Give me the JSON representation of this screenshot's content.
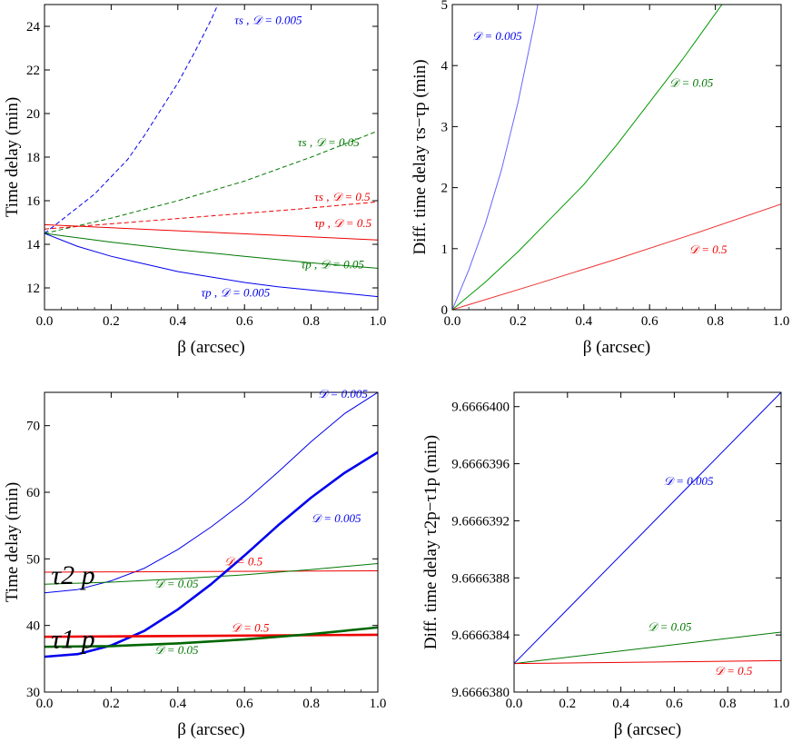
{
  "chart_data": [
    {
      "type": "line",
      "id": "top_left",
      "xlabel": "β (arcsec)",
      "ylabel": "Time delay (min)",
      "xlim": [
        0,
        1
      ],
      "ylim": [
        11,
        25
      ],
      "xticks": [
        0.0,
        0.2,
        0.4,
        0.6,
        0.8,
        1.0
      ],
      "xtick_labels": [
        "0.0",
        "0.2",
        "0.4",
        "0.6",
        "0.8",
        "1.0"
      ],
      "yticks": [
        12,
        14,
        16,
        18,
        20,
        22,
        24
      ],
      "ytick_labels": [
        "12",
        "14",
        "16",
        "18",
        "20",
        "22",
        "24"
      ],
      "series": [
        {
          "name": "τs, 𝒟 = 0.005",
          "color": "#0000ee",
          "dash": true,
          "width": 1,
          "x": [
            0,
            0.05,
            0.1,
            0.15,
            0.2,
            0.25,
            0.3,
            0.35,
            0.4,
            0.45,
            0.5,
            0.52
          ],
          "y": [
            14.5,
            15.1,
            15.7,
            16.3,
            17.1,
            17.9,
            19.0,
            20.2,
            21.4,
            22.8,
            24.3,
            25.0
          ]
        },
        {
          "name": "τs, 𝒟 = 0.05",
          "color": "#007700",
          "dash": true,
          "width": 1,
          "x": [
            0,
            0.2,
            0.4,
            0.6,
            0.8,
            1.0
          ],
          "y": [
            14.5,
            15.2,
            16.0,
            16.9,
            18.0,
            19.2
          ]
        },
        {
          "name": "τs, 𝒟 = 0.5",
          "color": "#ee0000",
          "dash": true,
          "width": 1,
          "x": [
            0,
            0.25,
            0.5,
            0.75,
            1.0
          ],
          "y": [
            14.7,
            15.0,
            15.3,
            15.6,
            15.95
          ]
        },
        {
          "name": "τp, 𝒟 = 0.5",
          "color": "#ee0000",
          "dash": false,
          "width": 1,
          "x": [
            0,
            0.5,
            1.0
          ],
          "y": [
            14.9,
            14.55,
            14.2
          ]
        },
        {
          "name": "τp, 𝒟 = 0.05",
          "color": "#007700",
          "dash": false,
          "width": 1,
          "x": [
            0,
            0.2,
            0.4,
            0.6,
            0.8,
            1.0
          ],
          "y": [
            14.5,
            14.1,
            13.75,
            13.45,
            13.15,
            12.9
          ]
        },
        {
          "name": "τp, 𝒟 = 0.005",
          "color": "#0000ee",
          "dash": false,
          "width": 1,
          "x": [
            0,
            0.1,
            0.2,
            0.3,
            0.4,
            0.5,
            0.6,
            0.7,
            0.8,
            0.9,
            1.0
          ],
          "y": [
            14.5,
            13.9,
            13.45,
            13.1,
            12.75,
            12.5,
            12.25,
            12.05,
            11.9,
            11.75,
            11.6
          ]
        }
      ],
      "annotations": [
        {
          "text": "τs ,  𝒟 = 0.005",
          "x": 0.57,
          "y": 24.1,
          "color": "#0000ee"
        },
        {
          "text": "τs ,  𝒟 = 0.05",
          "x": 0.76,
          "y": 18.5,
          "color": "#007700"
        },
        {
          "text": "τs ,  𝒟 = 0.5",
          "x": 0.81,
          "y": 16.0,
          "color": "#ee0000"
        },
        {
          "text": "τp ,  𝒟 = 0.5",
          "x": 0.81,
          "y": 14.8,
          "color": "#ee0000"
        },
        {
          "text": "τp ,  𝒟 = 0.05",
          "x": 0.77,
          "y": 12.9,
          "color": "#007700"
        },
        {
          "text": "τp ,  𝒟 = 0.005",
          "x": 0.47,
          "y": 11.6,
          "color": "#0000ee"
        }
      ]
    },
    {
      "type": "line",
      "id": "top_right",
      "xlabel": "β (arcsec)",
      "ylabel": "Diff. time delay τs−τp (min)",
      "xlim": [
        0,
        1
      ],
      "ylim": [
        0,
        5
      ],
      "xticks": [
        0.0,
        0.2,
        0.4,
        0.6,
        0.8,
        1.0
      ],
      "xtick_labels": [
        "0.0",
        "0.2",
        "0.4",
        "0.6",
        "0.8",
        "1.0"
      ],
      "yticks": [
        0,
        1,
        2,
        3,
        4,
        5
      ],
      "ytick_labels": [
        "0",
        "1",
        "2",
        "3",
        "4",
        "5"
      ],
      "series": [
        {
          "name": "𝒟 = 0.005",
          "color": "#6666ff",
          "dash": false,
          "width": 1,
          "x": [
            0,
            0.05,
            0.1,
            0.15,
            0.2,
            0.25,
            0.26
          ],
          "y": [
            0,
            0.65,
            1.4,
            2.3,
            3.4,
            4.7,
            5.0
          ]
        },
        {
          "name": "𝒟 = 0.05",
          "color": "#009900",
          "dash": false,
          "width": 1,
          "x": [
            0,
            0.1,
            0.2,
            0.3,
            0.4,
            0.5,
            0.6,
            0.7,
            0.8,
            0.82
          ],
          "y": [
            0,
            0.45,
            0.95,
            1.5,
            2.05,
            2.7,
            3.4,
            4.1,
            4.85,
            5.0
          ]
        },
        {
          "name": "𝒟 = 0.5",
          "color": "#ee3333",
          "dash": false,
          "width": 1,
          "x": [
            0,
            0.25,
            0.5,
            0.75,
            1.0
          ],
          "y": [
            0,
            0.41,
            0.83,
            1.27,
            1.73
          ]
        }
      ],
      "annotations": [
        {
          "text": "𝒟 = 0.005",
          "x": 0.06,
          "y": 4.42,
          "color": "#0000ee"
        },
        {
          "text": "𝒟 = 0.05",
          "x": 0.66,
          "y": 3.65,
          "color": "#007700"
        },
        {
          "text": "𝒟 = 0.5",
          "x": 0.72,
          "y": 0.92,
          "color": "#ee0000"
        }
      ]
    },
    {
      "type": "line",
      "id": "bottom_left",
      "xlabel": "β (arcsec)",
      "ylabel": "Time delay (min)",
      "xlim": [
        0,
        1
      ],
      "ylim": [
        30,
        75
      ],
      "xticks": [
        0.0,
        0.2,
        0.4,
        0.6,
        0.8,
        1.0
      ],
      "xtick_labels": [
        "0.0",
        "0.2",
        "0.4",
        "0.6",
        "0.8",
        "1.0"
      ],
      "yticks": [
        30,
        40,
        50,
        60,
        70
      ],
      "ytick_labels": [
        "30",
        "40",
        "50",
        "60",
        "70"
      ],
      "series": [
        {
          "name": "τ2p, 𝒟 = 0.005",
          "color": "#0000ee",
          "dash": false,
          "width": 1,
          "x": [
            0,
            0.1,
            0.2,
            0.3,
            0.4,
            0.5,
            0.6,
            0.7,
            0.8,
            0.9,
            1.0
          ],
          "y": [
            44.9,
            45.4,
            46.7,
            48.6,
            51.4,
            54.8,
            58.6,
            63.0,
            67.6,
            71.8,
            75.0
          ]
        },
        {
          "name": "τ2p, 𝒟 = 0.5",
          "color": "#ee0000",
          "dash": false,
          "width": 1,
          "x": [
            0,
            1.0
          ],
          "y": [
            48.0,
            48.2
          ]
        },
        {
          "name": "τ2p, 𝒟 = 0.05",
          "color": "#007700",
          "dash": false,
          "width": 1,
          "x": [
            0,
            0.2,
            0.4,
            0.6,
            0.8,
            1.0
          ],
          "y": [
            46.2,
            46.5,
            47.0,
            47.6,
            48.4,
            49.3
          ]
        },
        {
          "name": "τ1p, 𝒟 = 0.005",
          "color": "#0000ee",
          "dash": false,
          "width": 2.6,
          "x": [
            0,
            0.1,
            0.2,
            0.3,
            0.4,
            0.5,
            0.6,
            0.7,
            0.8,
            0.9,
            1.0
          ],
          "y": [
            35.3,
            35.7,
            37.0,
            39.2,
            42.4,
            46.2,
            50.5,
            55.0,
            59.2,
            62.9,
            66.0
          ]
        },
        {
          "name": "τ1p, 𝒟 = 0.5",
          "color": "#ee0000",
          "dash": false,
          "width": 2.6,
          "x": [
            0,
            1.0
          ],
          "y": [
            38.3,
            38.6
          ]
        },
        {
          "name": "τ1p, 𝒟 = 0.05",
          "color": "#006600",
          "dash": false,
          "width": 2.6,
          "x": [
            0,
            0.2,
            0.4,
            0.6,
            0.8,
            1.0
          ],
          "y": [
            36.8,
            36.9,
            37.3,
            37.9,
            38.7,
            39.7
          ]
        }
      ],
      "annotations": [
        {
          "text": "𝒟 = 0.005",
          "x": 0.82,
          "y": 74.2,
          "color": "#0000ee"
        },
        {
          "text": "𝒟 = 0.005",
          "x": 0.8,
          "y": 55.5,
          "color": "#0000ee"
        },
        {
          "text": "𝒟 = 0.5",
          "x": 0.54,
          "y": 49.0,
          "color": "#ee0000"
        },
        {
          "text": "𝒟 = 0.05",
          "x": 0.33,
          "y": 45.7,
          "color": "#007700"
        },
        {
          "text": "𝒟 = 0.5",
          "x": 0.56,
          "y": 39.1,
          "color": "#ee0000"
        },
        {
          "text": "𝒟 = 0.05",
          "x": 0.33,
          "y": 35.7,
          "color": "#007700"
        }
      ],
      "big_labels": [
        {
          "text": "τ2 p",
          "x": 0.02,
          "y": 46.2
        },
        {
          "text": "τ1 p",
          "x": 0.02,
          "y": 36.6
        }
      ]
    },
    {
      "type": "line",
      "id": "bottom_right",
      "xlabel": "β (arcsec)",
      "ylabel": "Diff. time delay τ2p−τ1p (min)",
      "xlim": [
        0,
        1
      ],
      "ylim": [
        9.666638,
        9.6666401
      ],
      "xticks": [
        0.0,
        0.2,
        0.4,
        0.6,
        0.8,
        1.0
      ],
      "xtick_labels": [
        "0.0",
        "0.2",
        "0.4",
        "0.6",
        "0.8",
        "1.0"
      ],
      "yticks": [
        9.666638,
        9.6666384,
        9.6666388,
        9.6666392,
        9.6666396,
        9.66664
      ],
      "ytick_labels": [
        "9.6666380",
        "9.6666384",
        "9.6666388",
        "9.6666392",
        "9.6666396",
        "9.6666400"
      ],
      "series": [
        {
          "name": "𝒟 = 0.005",
          "color": "#0000ee",
          "dash": false,
          "width": 1,
          "x": [
            0,
            1.0
          ],
          "y": [
            9.6666382,
            9.6666401
          ]
        },
        {
          "name": "𝒟 = 0.05",
          "color": "#007700",
          "dash": false,
          "width": 1,
          "x": [
            0,
            1.0
          ],
          "y": [
            9.6666382,
            9.66663842
          ]
        },
        {
          "name": "𝒟 = 0.5",
          "color": "#ee0000",
          "dash": false,
          "width": 1,
          "x": [
            0,
            1.0
          ],
          "y": [
            9.6666382,
            9.66663822
          ]
        }
      ],
      "annotations": [
        {
          "text": "𝒟 = 0.005",
          "x": 0.56,
          "y": 9.66663945,
          "color": "#0000ee"
        },
        {
          "text": "𝒟 = 0.05",
          "x": 0.5,
          "y": 9.66663843,
          "color": "#007700"
        },
        {
          "text": "𝒟 = 0.5",
          "x": 0.75,
          "y": 9.66663812,
          "color": "#ee0000"
        }
      ]
    }
  ]
}
